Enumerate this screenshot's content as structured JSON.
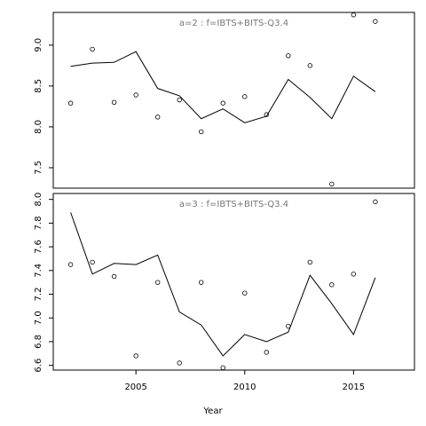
{
  "chart_data": {
    "type": "line",
    "xlabel": "Year",
    "xlim": [
      2001.2,
      2017.8
    ],
    "xticks": [
      2005,
      2010,
      2015
    ],
    "panels": [
      {
        "title": "a=2  :  f=IBTS+BITS-Q3.4",
        "ylim": [
          7.25,
          9.4
        ],
        "yticks": [
          7.5,
          8.0,
          8.5,
          9.0
        ],
        "ytick_labels": [
          "7.5",
          "8.0",
          "8.5",
          "9.0"
        ],
        "series": [
          {
            "kind": "line",
            "x": [
              2002,
              2003,
              2004,
              2005,
              2006,
              2007,
              2008,
              2009,
              2010,
              2011,
              2012,
              2013,
              2014,
              2015,
              2016
            ],
            "y": [
              8.74,
              8.78,
              8.79,
              8.92,
              8.47,
              8.38,
              8.1,
              8.22,
              8.05,
              8.13,
              8.58,
              8.36,
              8.1,
              8.62,
              8.43
            ]
          },
          {
            "kind": "points",
            "x": [
              2002,
              2003,
              2004,
              2005,
              2006,
              2007,
              2008,
              2009,
              2010,
              2011,
              2012,
              2013,
              2014,
              2015,
              2016
            ],
            "y": [
              8.29,
              8.95,
              8.3,
              8.39,
              8.12,
              8.33,
              7.94,
              8.29,
              8.37,
              8.15,
              8.87,
              8.75,
              7.3,
              9.37,
              9.29
            ]
          }
        ]
      },
      {
        "title": "a=3  :  f=IBTS+BITS-Q3.4",
        "ylim": [
          6.56,
          8.05
        ],
        "yticks": [
          6.6,
          6.8,
          7.0,
          7.2,
          7.4,
          7.6,
          7.8,
          8.0
        ],
        "ytick_labels": [
          "6.6",
          "6.8",
          "7.0",
          "7.2",
          "7.4",
          "7.6",
          "7.8",
          "8.0"
        ],
        "series": [
          {
            "kind": "line",
            "x": [
              2002,
              2003,
              2004,
              2005,
              2006,
              2007,
              2008,
              2009,
              2010,
              2011,
              2012,
              2013,
              2014,
              2015,
              2016
            ],
            "y": [
              7.89,
              7.37,
              7.46,
              7.45,
              7.53,
              7.05,
              6.94,
              6.68,
              6.86,
              6.8,
              6.88,
              7.36,
              7.12,
              6.86,
              7.34
            ]
          },
          {
            "kind": "points",
            "x": [
              2002,
              2003,
              2004,
              2005,
              2006,
              2007,
              2008,
              2009,
              2010,
              2011,
              2012,
              2013,
              2014,
              2015,
              2016
            ],
            "y": [
              7.45,
              7.47,
              7.35,
              6.68,
              7.3,
              6.62,
              7.3,
              6.58,
              7.21,
              6.71,
              6.93,
              7.47,
              7.28,
              7.37,
              7.98
            ]
          }
        ]
      }
    ]
  }
}
